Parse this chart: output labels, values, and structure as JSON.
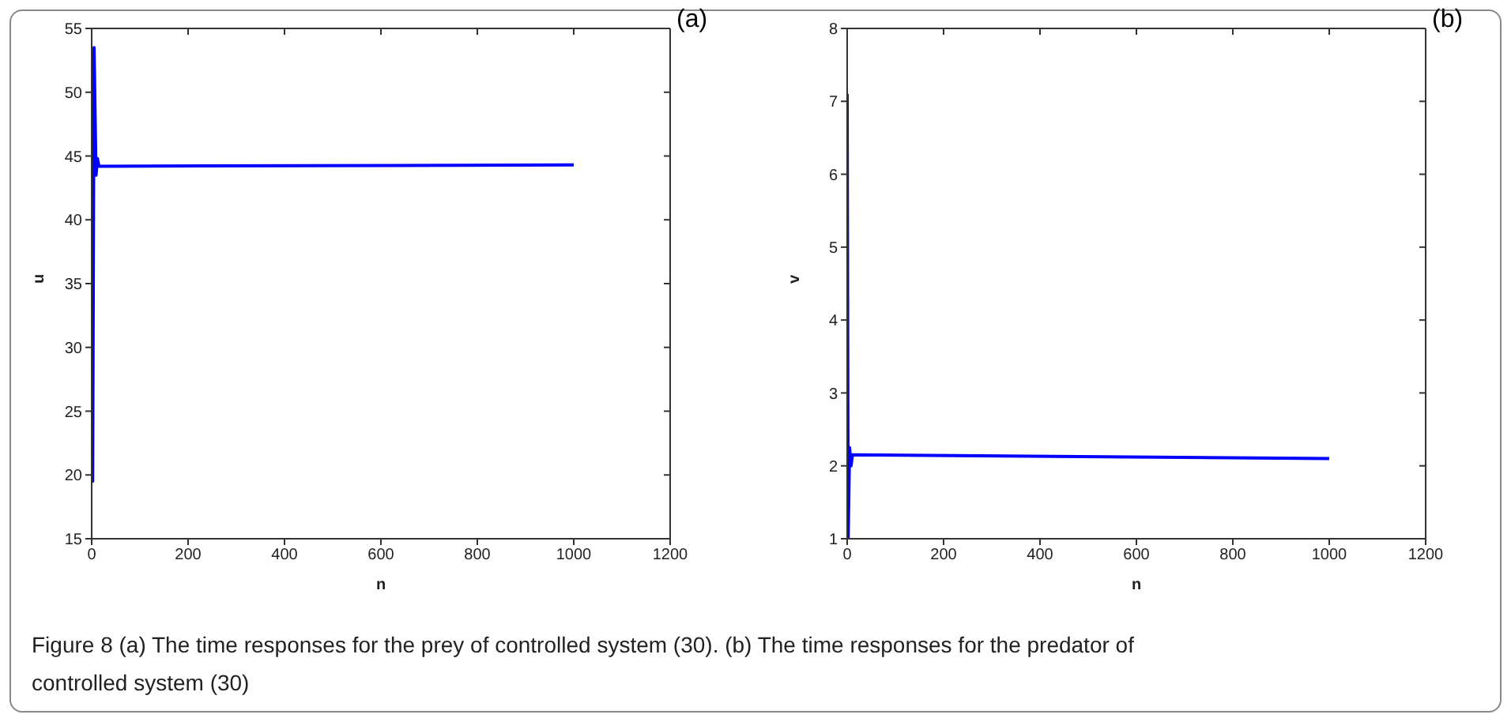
{
  "chart_data": [
    {
      "type": "line",
      "xlabel": "n",
      "ylabel": "u",
      "annotations": [
        "(a)"
      ],
      "xlim": [
        0,
        1200
      ],
      "xticks": [
        0,
        200,
        400,
        600,
        800,
        1000,
        1200
      ],
      "ylim": [
        15,
        55
      ],
      "yticks": [
        15,
        20,
        25,
        30,
        35,
        40,
        45,
        50,
        55
      ],
      "grid": false,
      "legend": false,
      "marker": "none",
      "line_style": "solid",
      "series": [
        {
          "color": "#0000ff",
          "x": [
            0,
            2,
            5,
            9,
            12,
            15,
            1000
          ],
          "values": [
            49,
            19.5,
            53.5,
            43.5,
            44.8,
            44.2,
            44.3
          ]
        }
      ]
    },
    {
      "type": "line",
      "xlabel": "n",
      "ylabel": "v",
      "annotations": [
        "(b)",
        "Figure 8  (a) The time responses for the prey of controlled system (30). (b) The time responses for the predator of controlled system (30)"
      ],
      "xlim": [
        0,
        1200
      ],
      "xticks": [
        0,
        200,
        400,
        600,
        800,
        1000,
        1200
      ],
      "ylim": [
        1,
        8
      ],
      "yticks": [
        1,
        2,
        3,
        4,
        5,
        6,
        7,
        8
      ],
      "grid": false,
      "legend": false,
      "marker": "none",
      "line_style": "solid",
      "series": [
        {
          "color": "#0000ff",
          "x": [
            0,
            2,
            5,
            8,
            11,
            1000
          ],
          "values": [
            7.1,
            1,
            2.25,
            2.0,
            2.15,
            2.1
          ]
        }
      ]
    }
  ]
}
